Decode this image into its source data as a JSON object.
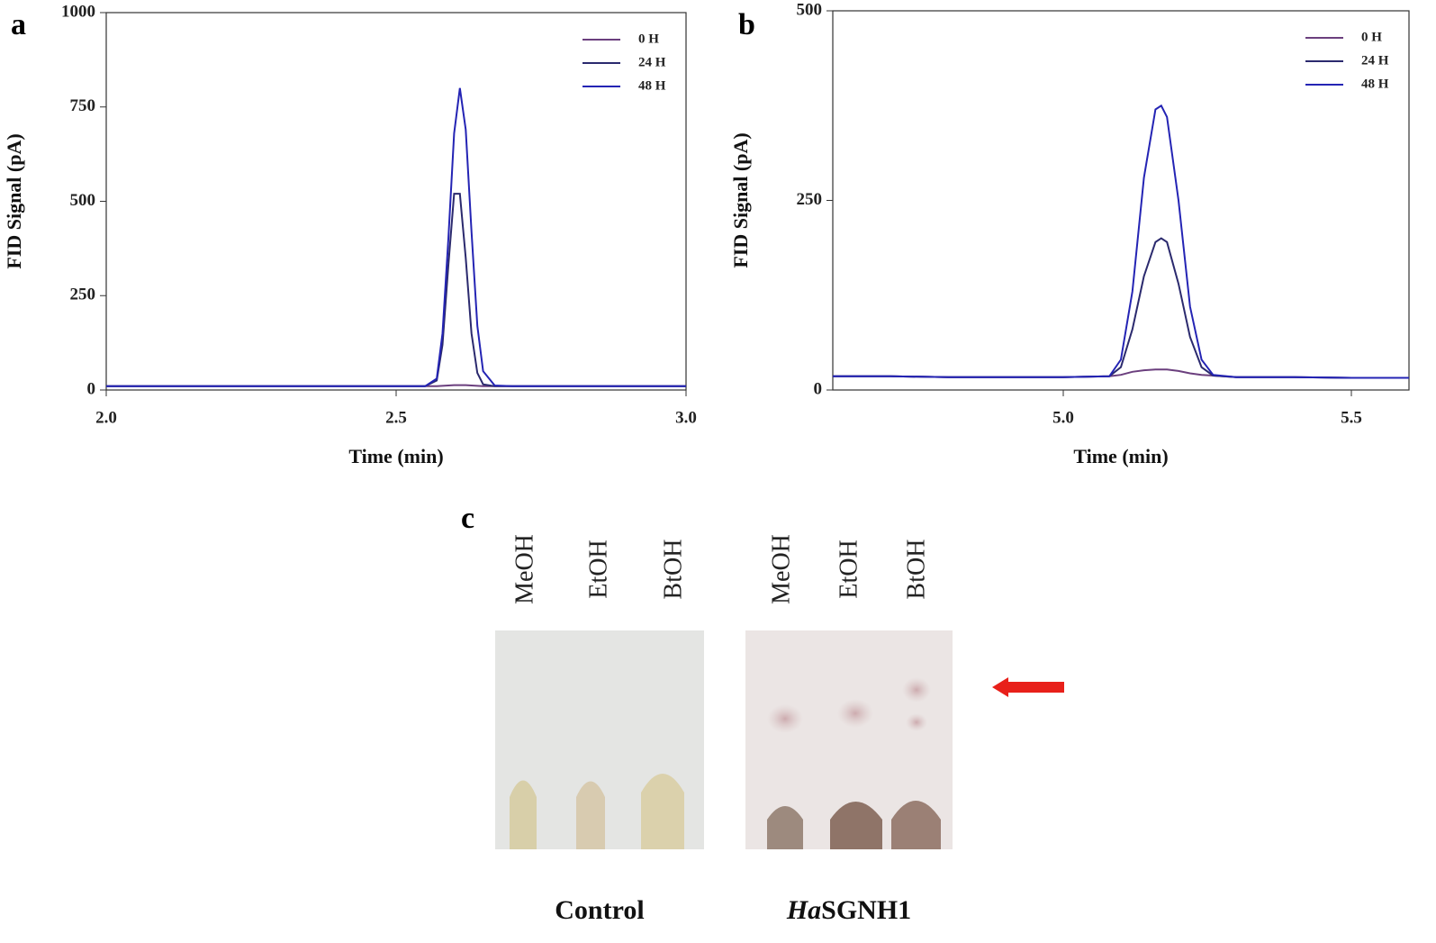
{
  "chart_data": [
    {
      "type": "line",
      "panel": "a",
      "xlabel": "Time (min)",
      "ylabel": "FID Signal (pA)",
      "xlim": [
        2.0,
        3.0
      ],
      "xticks": [
        {
          "value": 2,
          "label": "2.0"
        },
        2.5,
        {
          "value": 3,
          "label": "3.0"
        }
      ],
      "ylim": [
        0,
        1000
      ],
      "yticks": [
        0,
        250,
        500,
        750,
        1000
      ],
      "legend": "upper right",
      "x": [
        2.0,
        2.1,
        2.2,
        2.3,
        2.4,
        2.5,
        2.55,
        2.57,
        2.58,
        2.59,
        2.6,
        2.61,
        2.62,
        2.63,
        2.64,
        2.65,
        2.67,
        2.7,
        2.8,
        2.9,
        3.0
      ],
      "series": [
        {
          "name": "0  H",
          "color": "#6b3f7e",
          "values": [
            10,
            10,
            10,
            10,
            10,
            10,
            10,
            10,
            11,
            12,
            13,
            13,
            13,
            12,
            11,
            10,
            10,
            10,
            10,
            10,
            10
          ]
        },
        {
          "name": "24 H",
          "color": "#2b2a6e",
          "values": [
            10,
            10,
            10,
            10,
            10,
            10,
            10,
            25,
            120,
            330,
            520,
            520,
            350,
            150,
            45,
            15,
            10,
            10,
            10,
            10,
            10
          ]
        },
        {
          "name": "48 H",
          "color": "#2424b4",
          "values": [
            10,
            10,
            10,
            10,
            10,
            10,
            10,
            30,
            150,
            400,
            680,
            800,
            690,
            420,
            170,
            50,
            12,
            10,
            10,
            10,
            10
          ]
        }
      ]
    },
    {
      "type": "line",
      "panel": "b",
      "xlabel": "Time (min)",
      "ylabel": "FID Signal (pA)",
      "xlim": [
        4.6,
        5.6
      ],
      "xticks": [
        {
          "value": 5,
          "label": "5.0"
        },
        5.5
      ],
      "ylim": [
        0,
        500
      ],
      "yticks": [
        0,
        250,
        500
      ],
      "legend": "upper right",
      "x": [
        4.6,
        4.7,
        4.8,
        4.9,
        5.0,
        5.08,
        5.1,
        5.12,
        5.14,
        5.16,
        5.17,
        5.18,
        5.2,
        5.22,
        5.24,
        5.26,
        5.3,
        5.4,
        5.5,
        5.6
      ],
      "series": [
        {
          "name": "0 H",
          "color": "#6b3f7e",
          "values": [
            18,
            18,
            17,
            17,
            17,
            18,
            20,
            24,
            26,
            27,
            27,
            27,
            25,
            22,
            20,
            19,
            17,
            17,
            16,
            16
          ]
        },
        {
          "name": "24 H",
          "color": "#2b2a6e",
          "values": [
            18,
            18,
            17,
            17,
            17,
            18,
            30,
            80,
            150,
            195,
            200,
            195,
            140,
            70,
            30,
            19,
            17,
            17,
            16,
            16
          ]
        },
        {
          "name": "48 H",
          "color": "#2424b4",
          "values": [
            18,
            18,
            17,
            17,
            17,
            18,
            40,
            130,
            280,
            370,
            375,
            360,
            250,
            110,
            40,
            20,
            17,
            17,
            16,
            16
          ]
        }
      ]
    }
  ],
  "panel_c": {
    "panel": "c",
    "lanes": [
      "MeOH",
      "EtOH",
      "BtOH",
      "MeOH",
      "EtOH",
      "BtOH"
    ],
    "captions": [
      {
        "text": "Control"
      },
      {
        "italic": "Ha",
        "text": "SGNH1"
      }
    ]
  }
}
